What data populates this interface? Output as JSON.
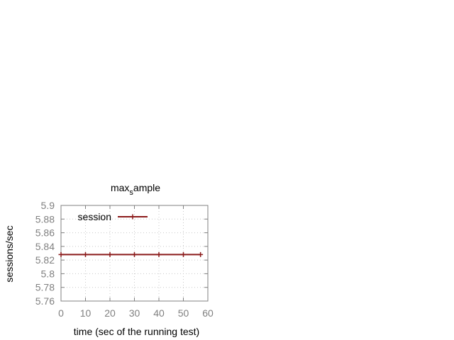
{
  "chart_data": {
    "type": "line",
    "title_main": "max",
    "title_sub": "s",
    "title_rest": "ample",
    "xlabel": "time (sec of the running test)",
    "ylabel": "sessions/sec",
    "xlim": [
      0,
      60
    ],
    "ylim": [
      5.76,
      5.9
    ],
    "xticks": [
      0,
      10,
      20,
      30,
      40,
      50,
      60
    ],
    "xtick_labels": [
      "0",
      "10",
      "20",
      "30",
      "40",
      "50",
      "60"
    ],
    "yticks": [
      5.76,
      5.78,
      5.8,
      5.82,
      5.84,
      5.86,
      5.88,
      5.9
    ],
    "ytick_labels": [
      "5.76",
      "5.78",
      "5.8",
      "5.82",
      "5.84",
      "5.86",
      "5.88",
      "5.9"
    ],
    "grid": true,
    "legend_position": "top-left",
    "series": [
      {
        "name": "session",
        "color": "#8b1a1a",
        "marker": "plus",
        "x": [
          0,
          10,
          20,
          30,
          40,
          50,
          57
        ],
        "y": [
          5.828,
          5.828,
          5.828,
          5.828,
          5.828,
          5.828,
          5.828
        ]
      }
    ]
  }
}
